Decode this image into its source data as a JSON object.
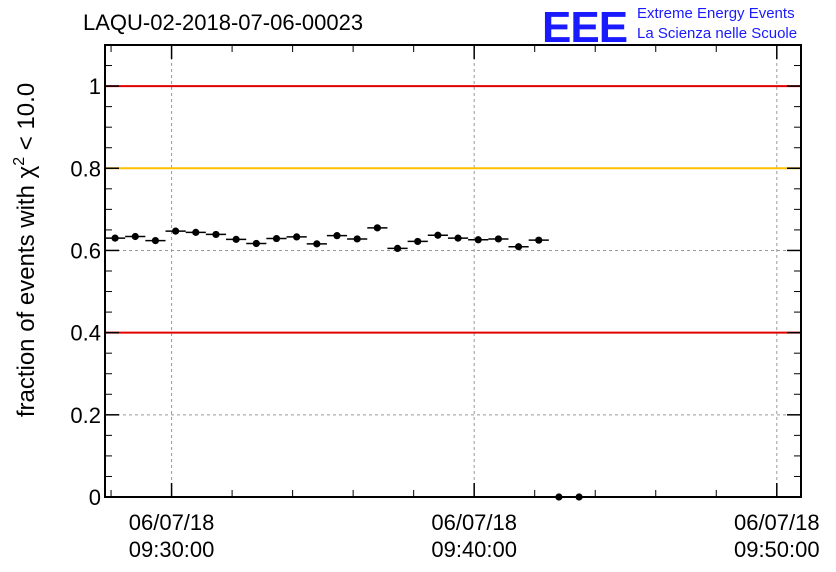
{
  "header": {
    "title": "LAQU-02-2018-07-06-00023",
    "logo_text": "EEE",
    "logo_line1": "Extreme Energy Events",
    "logo_line2": "La Scienza nelle Scuole"
  },
  "colors": {
    "logo": "#1a1aff",
    "red_line": "#e00000",
    "yellow_line": "#ffc000",
    "grid": "#999999",
    "points": "#000000"
  },
  "chart_data": {
    "type": "scatter",
    "title": "LAQU-02-2018-07-06-00023",
    "ylabel_prefix": "fraction of events with χ",
    "ylabel_sup": "2",
    "ylabel_suffix": " < 10.0",
    "xlabel": "",
    "ylim": [
      0,
      1.1
    ],
    "yticks": [
      "0",
      "0.2",
      "0.4",
      "0.6",
      "0.8",
      "1"
    ],
    "ytick_values": [
      0,
      0.2,
      0.4,
      0.6,
      0.8,
      1.0
    ],
    "xlim": [
      "2018-07-06 09:27:48",
      "2018-07-06 09:50:48"
    ],
    "xticks": [
      {
        "date": "06/07/18",
        "time": "09:30:00",
        "value": "2018-07-06 09:30:00"
      },
      {
        "date": "06/07/18",
        "time": "09:40:00",
        "value": "2018-07-06 09:40:00"
      },
      {
        "date": "06/07/18",
        "time": "09:50:00",
        "value": "2018-07-06 09:50:00"
      }
    ],
    "grid": true,
    "reference_lines": [
      {
        "y": 1.0,
        "color": "#e00000"
      },
      {
        "y": 0.8,
        "color": "#ffc000"
      },
      {
        "y": 0.4,
        "color": "#e00000"
      }
    ],
    "bin_width_seconds": 40,
    "x": [
      "2018-07-06 09:28:08",
      "2018-07-06 09:28:48",
      "2018-07-06 09:29:28",
      "2018-07-06 09:30:08",
      "2018-07-06 09:30:48",
      "2018-07-06 09:31:28",
      "2018-07-06 09:32:08",
      "2018-07-06 09:32:48",
      "2018-07-06 09:33:28",
      "2018-07-06 09:34:08",
      "2018-07-06 09:34:48",
      "2018-07-06 09:35:28",
      "2018-07-06 09:36:08",
      "2018-07-06 09:36:48",
      "2018-07-06 09:37:28",
      "2018-07-06 09:38:08",
      "2018-07-06 09:38:48",
      "2018-07-06 09:39:28",
      "2018-07-06 09:40:08",
      "2018-07-06 09:40:48",
      "2018-07-06 09:41:28",
      "2018-07-06 09:42:08",
      "2018-07-06 09:42:48",
      "2018-07-06 09:43:28"
    ],
    "series": [
      {
        "values": [
          0.63,
          0.634,
          0.624,
          0.647,
          0.644,
          0.639,
          0.627,
          0.617,
          0.629,
          0.633,
          0.616,
          0.636,
          0.628,
          0.655,
          0.605,
          0.622,
          0.637,
          0.63,
          0.626,
          0.628,
          0.609,
          0.625,
          0.0,
          0.0
        ]
      }
    ]
  }
}
